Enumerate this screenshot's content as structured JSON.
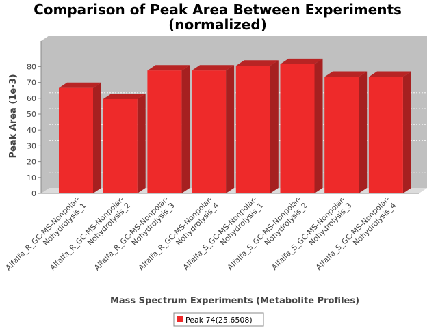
{
  "chart_data": {
    "type": "bar",
    "title_line1": "Comparison of Peak Area Between Experiments",
    "title_line2": "(normalized)",
    "xlabel": "Mass Spectrum Experiments (Metabolite Profiles)",
    "ylabel": "Peak Area (1e-3)",
    "ylim": [
      0,
      88
    ],
    "yticks": [
      0,
      10,
      20,
      30,
      40,
      50,
      60,
      70,
      80
    ],
    "grid": true,
    "legend_position": "bottom",
    "categories": [
      [
        "Alfalfa_R_GC-MS-Nonpolar-",
        "Nohydrolysis_1"
      ],
      [
        "Alfalfa_R_GC-MS-Nonpolar-",
        "Nohydrolysis_2"
      ],
      [
        "Alfalfa_R_GC-MS-Nonpolar-",
        "Nohydrolysis_3"
      ],
      [
        "Alfalfa_R_GC-MS-Nonpolar-",
        "Nohydrolysis_4"
      ],
      [
        "Alfalfa_S_GC-MS-Nonpolar-",
        "Nohydrolysis_1"
      ],
      [
        "Alfalfa_S_GC-MS-Nonpolar-",
        "Nohydrolysis_2"
      ],
      [
        "Alfalfa_S_GC-MS-Nonpolar-",
        "Nohydrolysis_3"
      ],
      [
        "Alfalfa_S_GC-MS-Nonpolar-",
        "Nohydrolysis_4"
      ]
    ],
    "series": [
      {
        "name": "Peak 74(25.6508)",
        "color": "#ee2a2a",
        "values": [
          66.5,
          59.5,
          77.5,
          77.5,
          80.5,
          81.5,
          73.5,
          73.5
        ]
      }
    ]
  }
}
